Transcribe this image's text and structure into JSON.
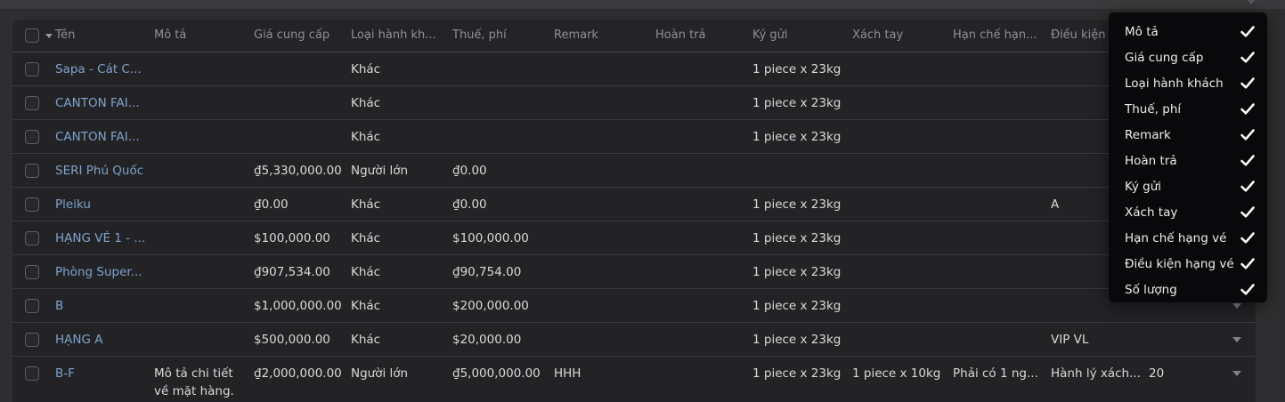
{
  "colors": {
    "pageBg": "#2e2e30",
    "stripBg": "#3a3a3c",
    "tableBg": "#232326",
    "headerBg": "#242427",
    "separator": "#39393c",
    "headerText": "#909094",
    "text": "#d9d9da",
    "link": "#7ea2cb",
    "menuBg": "#09090b",
    "check": "#ffffff"
  },
  "table": {
    "columns": [
      {
        "id": "name",
        "label": "Tên"
      },
      {
        "id": "desc",
        "label": "Mô tả"
      },
      {
        "id": "price",
        "label": "Giá cung cấp"
      },
      {
        "id": "pax",
        "label": "Loại hành kh..."
      },
      {
        "id": "tax",
        "label": "Thuế, phí"
      },
      {
        "id": "remark",
        "label": "Remark"
      },
      {
        "id": "refund",
        "label": "Hoàn trả"
      },
      {
        "id": "checked",
        "label": "Ký gửi"
      },
      {
        "id": "carry",
        "label": "Xách tay"
      },
      {
        "id": "restrict",
        "label": "Hạn chế hạn..."
      },
      {
        "id": "condition",
        "label": "Điều kiện hạng vé"
      },
      {
        "id": "qty",
        "label": "Số lượng"
      }
    ],
    "rows": [
      {
        "name": "Sapa - Cát C...",
        "pax": "Khác",
        "checked": "1 piece x 23kg"
      },
      {
        "name": "CANTON FAI...",
        "pax": "Khác",
        "checked": "1 piece x 23kg"
      },
      {
        "name": "CANTON FAI...",
        "pax": "Khác",
        "checked": "1 piece x 23kg"
      },
      {
        "name": "SERI Phú Quốc",
        "price": "₫5,330,000.00",
        "pax": "Người lớn",
        "tax": "₫0.00"
      },
      {
        "name": "Pleiku",
        "price": "₫0.00",
        "pax": "Khác",
        "tax": "₫0.00",
        "checked": "1 piece x 23kg",
        "condition": "A"
      },
      {
        "name": "HẠNG VÉ 1 - ...",
        "price": "$100,000.00",
        "pax": "Khác",
        "tax": "$100,000.00",
        "checked": "1 piece x 23kg"
      },
      {
        "name": "Phòng Super...",
        "price": "₫907,534.00",
        "pax": "Khác",
        "tax": "₫90,754.00",
        "checked": "1 piece x 23kg"
      },
      {
        "name": "B",
        "price": "$1,000,000.00",
        "pax": "Khác",
        "tax": "$200,000.00",
        "checked": "1 piece x 23kg"
      },
      {
        "name": "HẠNG A",
        "price": "$500,000.00",
        "pax": "Khác",
        "tax": "$20,000.00",
        "checked": "1 piece x 23kg",
        "condition": "VIP VL"
      },
      {
        "name": "B-F",
        "desc": "Mô tả chi tiết về mặt hàng.",
        "price": "₫2,000,000.00",
        "pax": "Người lớn",
        "tax": "₫5,000,000.00",
        "remark": "HHH",
        "checked": "1 piece x 23kg",
        "carry": "1 piece x 10kg",
        "restrict": "Phải có 1 ng...",
        "condition": "Hành lý xách...",
        "qty": "20"
      }
    ]
  },
  "column_menu": {
    "items": [
      {
        "label": "Mô tả",
        "checked": true
      },
      {
        "label": "Giá cung cấp",
        "checked": true
      },
      {
        "label": "Loại hành khách",
        "checked": true
      },
      {
        "label": "Thuế, phí",
        "checked": true
      },
      {
        "label": "Remark",
        "checked": true
      },
      {
        "label": "Hoàn trả",
        "checked": true
      },
      {
        "label": "Ký gửi",
        "checked": true
      },
      {
        "label": "Xách tay",
        "checked": true
      },
      {
        "label": "Hạn chế hạng vé",
        "checked": true
      },
      {
        "label": "Điều kiện hạng vé",
        "checked": true
      },
      {
        "label": "Số lượng",
        "checked": true
      }
    ]
  }
}
